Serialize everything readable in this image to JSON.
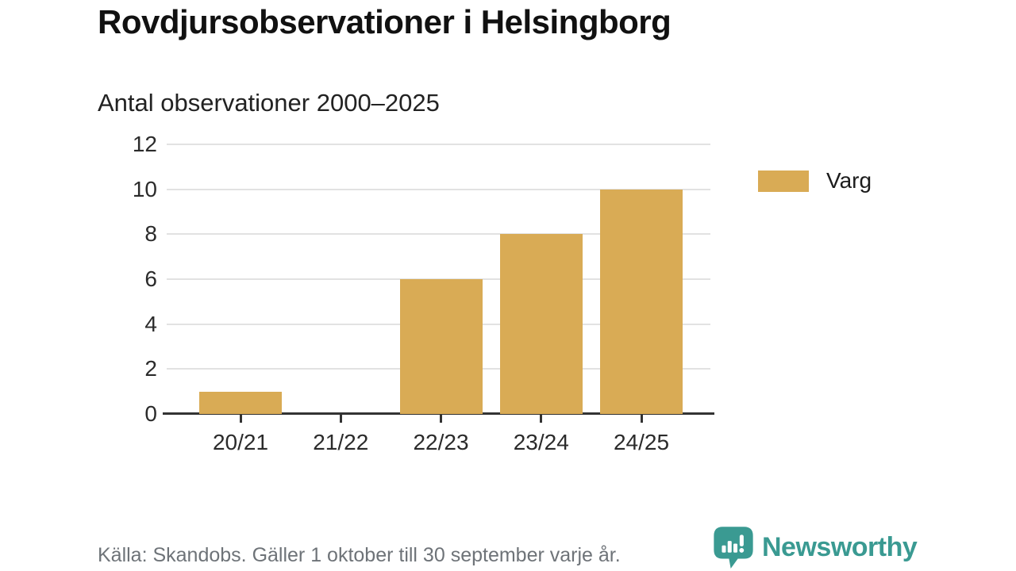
{
  "header": {
    "title": "Rovdjursobservationer i Helsingborg",
    "subtitle": "Antal observationer 2000–2025"
  },
  "legend": {
    "label": "Varg",
    "swatch_color": "#d9ab55"
  },
  "footer": {
    "source": "Källa: Skandobs. Gäller 1 oktober till 30 september varje år.",
    "brand": "Newsworthy"
  },
  "colors": {
    "bar": "#d9ab55",
    "gridline": "#e2e2e2",
    "axis": "#333333",
    "text": "#1c1c1c",
    "muted_text": "#6e7378",
    "brand_teal": "#3a9a92",
    "background": "#ffffff"
  },
  "chart_data": {
    "type": "bar",
    "title": "Rovdjursobservationer i Helsingborg",
    "subtitle": "Antal observationer 2000–2025",
    "categories": [
      "20/21",
      "21/22",
      "22/23",
      "23/24",
      "24/25"
    ],
    "series": [
      {
        "name": "Varg",
        "values": [
          1,
          0,
          6,
          8,
          10
        ],
        "color": "#d9ab55"
      }
    ],
    "xlabel": "",
    "ylabel": "",
    "ylim": [
      0,
      12
    ],
    "yticks": [
      0,
      2,
      4,
      6,
      8,
      10,
      12
    ],
    "grid": true,
    "legend_position": "right",
    "source": "Källa: Skandobs. Gäller 1 oktober till 30 september varje år."
  }
}
